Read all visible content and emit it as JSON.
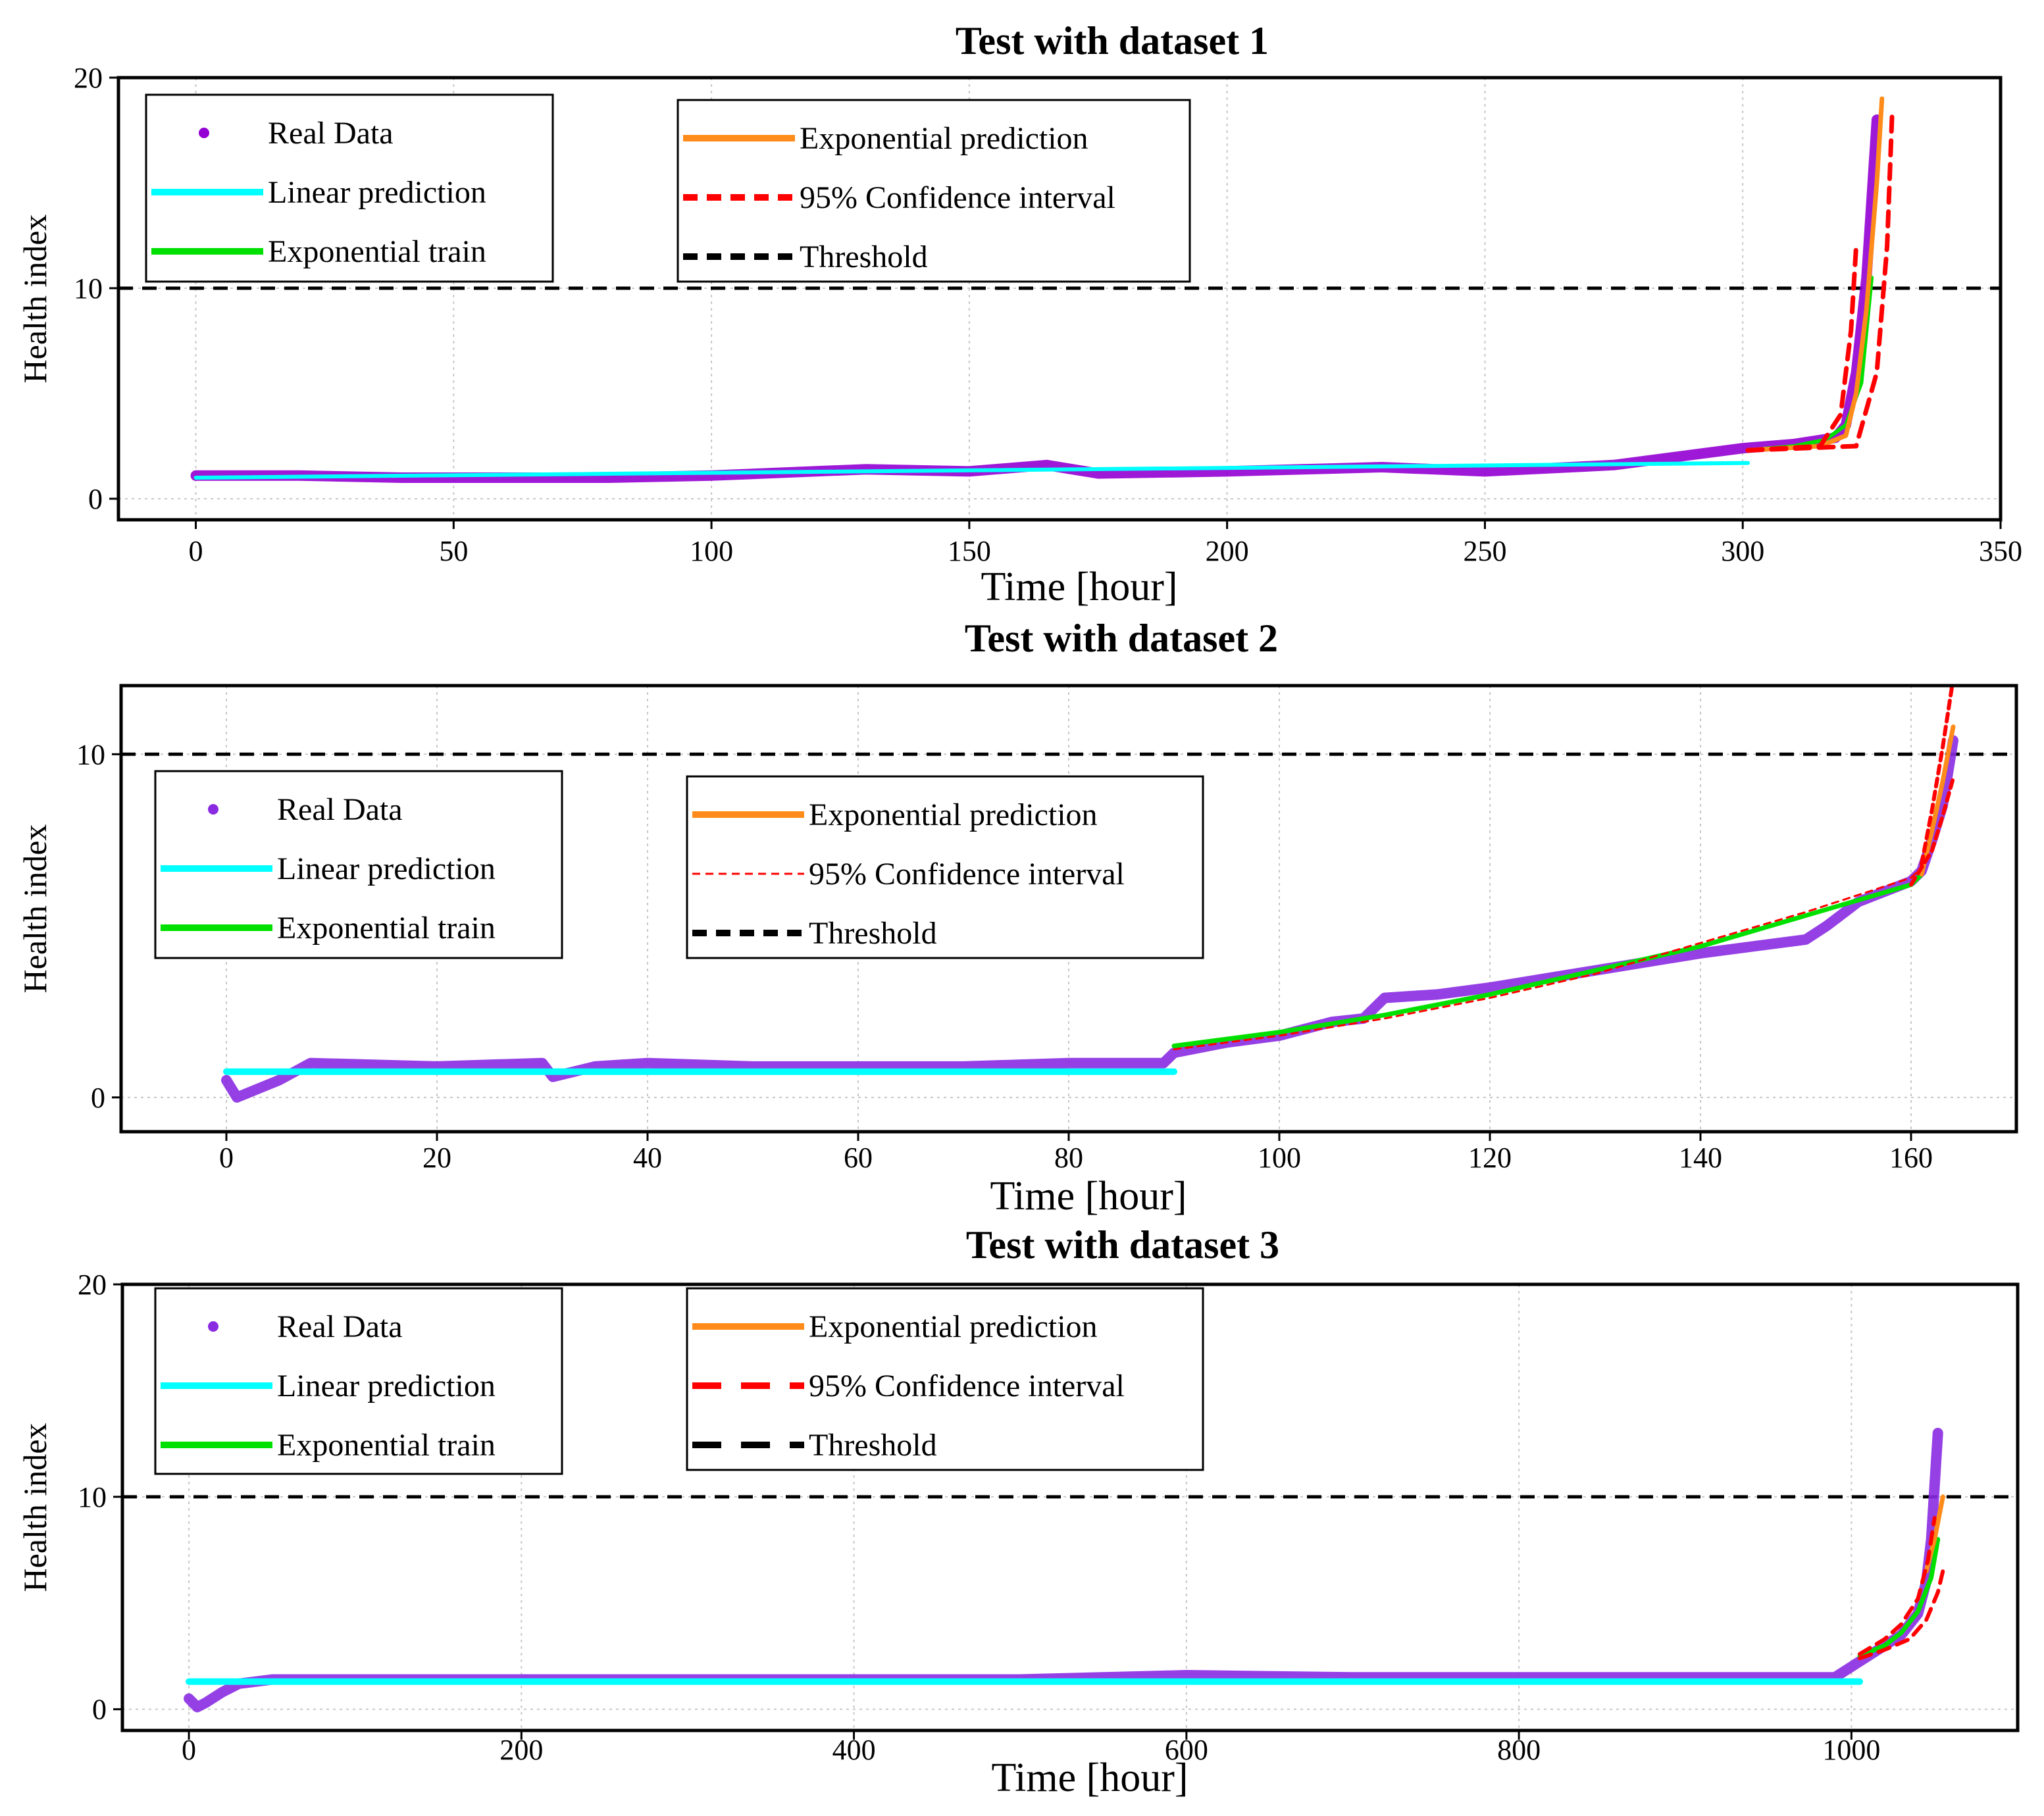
{
  "figure": {
    "background": "#ffffff"
  },
  "chart_data": [
    {
      "type": "line",
      "title": "Test with dataset 1",
      "xlabel": "Time [hour]",
      "ylabel": "Health index",
      "xlim": [
        -15,
        350
      ],
      "ylim": [
        -1,
        20
      ],
      "xticks": [
        0,
        50,
        100,
        150,
        200,
        250,
        300,
        350
      ],
      "yticks": [
        0,
        10,
        20
      ],
      "grid": true,
      "legend": [
        {
          "label": "Real Data",
          "style": "dot",
          "color": "#9400d3"
        },
        {
          "label": "Linear prediction",
          "style": "solid",
          "color": "#00ffff"
        },
        {
          "label": "Exponential train",
          "style": "solid",
          "color": "#00e000"
        }
      ],
      "legend2": [
        {
          "label": "Exponential prediction",
          "style": "solid",
          "color": "#ff8c1a"
        },
        {
          "label": "95% Confidence interval",
          "style": "dashed",
          "color": "#ff0000"
        },
        {
          "label": "Threshold",
          "style": "dashed",
          "color": "#000000"
        }
      ],
      "threshold": 10,
      "real_data": {
        "color": "#9400d3",
        "x": [
          0,
          20,
          40,
          60,
          80,
          100,
          120,
          130,
          150,
          165,
          175,
          200,
          230,
          250,
          275,
          300,
          310,
          318,
          320,
          322,
          324,
          326
        ],
        "y": [
          1.1,
          1.1,
          1.0,
          1.0,
          1.0,
          1.1,
          1.3,
          1.4,
          1.3,
          1.6,
          1.2,
          1.3,
          1.5,
          1.3,
          1.6,
          2.4,
          2.6,
          2.9,
          3.5,
          6.0,
          10.5,
          18.0
        ]
      },
      "series": [
        {
          "name": "Linear prediction",
          "color": "#00ffff",
          "dash": "",
          "width": 6,
          "x": [
            0,
            301
          ],
          "y": [
            1.0,
            1.7
          ]
        },
        {
          "name": "Exponential train",
          "color": "#00e000",
          "dash": "",
          "width": 6,
          "x": [
            301,
            310,
            316,
            320,
            323,
            325
          ],
          "y": [
            2.3,
            2.5,
            2.8,
            3.5,
            5.5,
            10.5
          ]
        },
        {
          "name": "Exponential prediction",
          "color": "#ff8c1a",
          "dash": "",
          "width": 7,
          "x": [
            301,
            315,
            320,
            322,
            324,
            326,
            327
          ],
          "y": [
            2.3,
            2.5,
            3.0,
            5.0,
            9.0,
            15.0,
            19.0
          ]
        },
        {
          "name": "95% Confidence interval",
          "color": "#ff0000",
          "dash": "22,14",
          "width": 7,
          "x": [
            301,
            315,
            319,
            321,
            322
          ],
          "y": [
            2.3,
            2.5,
            4.0,
            8.0,
            12.0
          ]
        },
        {
          "name": "95% Confidence interval (upper time)",
          "color": "#ff0000",
          "dash": "22,14",
          "width": 7,
          "x": [
            301,
            322,
            326,
            328,
            329
          ],
          "y": [
            2.3,
            2.5,
            6.0,
            12.0,
            18.5
          ]
        }
      ]
    },
    {
      "type": "line",
      "title": "Test with dataset 2",
      "xlabel": "Time [hour]",
      "ylabel": "Health index",
      "xlim": [
        -10,
        170
      ],
      "ylim": [
        -1,
        12
      ],
      "xticks": [
        0,
        20,
        40,
        60,
        80,
        100,
        120,
        140,
        160
      ],
      "yticks": [
        0,
        10
      ],
      "grid": true,
      "legend": [
        {
          "label": "Real Data",
          "style": "dot",
          "color": "#8a2be2"
        },
        {
          "label": "Linear prediction",
          "style": "solid",
          "color": "#00ffff"
        },
        {
          "label": "Exponential train",
          "style": "solid",
          "color": "#00e000"
        }
      ],
      "legend2": [
        {
          "label": "Exponential prediction",
          "style": "solid",
          "color": "#ff8c1a"
        },
        {
          "label": "95% Confidence interval",
          "style": "dashed-thin",
          "color": "#ff0000"
        },
        {
          "label": "Threshold",
          "style": "dashed",
          "color": "#000000"
        }
      ],
      "threshold": 10,
      "real_data": {
        "color": "#8a2be2",
        "x": [
          0,
          1,
          5,
          8,
          20,
          30,
          31,
          35,
          40,
          50,
          60,
          70,
          80,
          89,
          90,
          95,
          100,
          105,
          108,
          110,
          115,
          120,
          130,
          140,
          150,
          152,
          155,
          160,
          161,
          162,
          163,
          164
        ],
        "y": [
          0.5,
          0.0,
          0.5,
          1.0,
          0.9,
          1.0,
          0.6,
          0.9,
          1.0,
          0.9,
          0.9,
          0.9,
          1.0,
          1.0,
          1.3,
          1.6,
          1.8,
          2.2,
          2.3,
          2.9,
          3.0,
          3.2,
          3.7,
          4.2,
          4.6,
          5.0,
          5.7,
          6.3,
          6.6,
          7.5,
          8.5,
          10.4
        ]
      },
      "series": [
        {
          "name": "Linear prediction",
          "color": "#00ffff",
          "dash": "",
          "width": 10,
          "x": [
            0,
            90
          ],
          "y": [
            0.75,
            0.75
          ]
        },
        {
          "name": "Exponential train",
          "color": "#00e000",
          "dash": "",
          "width": 7,
          "x": [
            90,
            100,
            110,
            120,
            130,
            140,
            150,
            160,
            161
          ],
          "y": [
            1.5,
            1.9,
            2.4,
            3.0,
            3.7,
            4.4,
            5.3,
            6.2,
            6.5
          ]
        },
        {
          "name": "Exponential prediction",
          "color": "#ff8c1a",
          "dash": "",
          "width": 7,
          "x": [
            161,
            162,
            163,
            164
          ],
          "y": [
            6.5,
            7.8,
            9.2,
            10.8
          ]
        },
        {
          "name": "95% Confidence interval",
          "color": "#ff0000",
          "dash": "10,8",
          "width": 3,
          "x": [
            90,
            100,
            110,
            120,
            130,
            140,
            150,
            160,
            161
          ],
          "y": [
            1.4,
            1.8,
            2.3,
            2.9,
            3.6,
            4.5,
            5.4,
            6.4,
            6.7
          ]
        },
        {
          "name": "95% Confidence interval (upper)",
          "color": "#ff0000",
          "dash": "12,8",
          "width": 6,
          "x": [
            161,
            162,
            163,
            164
          ],
          "y": [
            6.8,
            8.4,
            10.2,
            12.2
          ]
        },
        {
          "name": "95% Confidence interval (lower)",
          "color": "#ff0000",
          "dash": "12,8",
          "width": 6,
          "x": [
            160,
            162,
            163,
            164
          ],
          "y": [
            6.2,
            7.2,
            8.2,
            9.3
          ]
        }
      ]
    },
    {
      "type": "line",
      "title": "Test with dataset 3",
      "xlabel": "Time [hour]",
      "ylabel": "Health index",
      "xlim": [
        -40,
        1100
      ],
      "ylim": [
        -1,
        20
      ],
      "xticks": [
        0,
        200,
        400,
        600,
        800,
        1000
      ],
      "yticks": [
        0,
        10,
        20
      ],
      "grid": true,
      "legend": [
        {
          "label": "Real Data",
          "style": "dot",
          "color": "#8a2be2"
        },
        {
          "label": "Linear prediction",
          "style": "solid",
          "color": "#00ffff"
        },
        {
          "label": "Exponential train",
          "style": "solid",
          "color": "#00e000"
        }
      ],
      "legend2": [
        {
          "label": "Exponential prediction",
          "style": "solid",
          "color": "#ff8c1a"
        },
        {
          "label": "95% Confidence interval",
          "style": "dashed-long",
          "color": "#ff0000"
        },
        {
          "label": "Threshold",
          "style": "dashed-long",
          "color": "#000000"
        }
      ],
      "threshold": 10,
      "real_data": {
        "color": "#8a2be2",
        "x": [
          0,
          5,
          10,
          20,
          30,
          50,
          100,
          200,
          300,
          400,
          500,
          600,
          700,
          800,
          900,
          990,
          1000,
          1010,
          1020,
          1030,
          1040,
          1045,
          1048,
          1050,
          1052
        ],
        "y": [
          0.5,
          0.1,
          0.3,
          0.8,
          1.2,
          1.4,
          1.4,
          1.4,
          1.4,
          1.4,
          1.4,
          1.6,
          1.5,
          1.5,
          1.5,
          1.5,
          2.0,
          2.5,
          3.0,
          3.5,
          4.5,
          6.0,
          8.0,
          10.5,
          13.0
        ]
      },
      "series": [
        {
          "name": "Linear prediction",
          "color": "#00ffff",
          "dash": "",
          "width": 10,
          "x": [
            0,
            1005
          ],
          "y": [
            1.3,
            1.3
          ]
        },
        {
          "name": "Exponential train",
          "color": "#00e000",
          "dash": "",
          "width": 7,
          "x": [
            1005,
            1020,
            1030,
            1040,
            1048,
            1052
          ],
          "y": [
            2.5,
            3.0,
            3.6,
            4.6,
            6.2,
            8.0
          ]
        },
        {
          "name": "Exponential prediction",
          "color": "#ff8c1a",
          "dash": "",
          "width": 7,
          "x": [
            1045,
            1050,
            1055
          ],
          "y": [
            6.5,
            8.0,
            10.0
          ]
        },
        {
          "name": "95% Confidence interval",
          "color": "#ff0000",
          "dash": "18,12",
          "width": 6,
          "x": [
            1005,
            1020,
            1030,
            1040,
            1046,
            1050
          ],
          "y": [
            2.6,
            3.3,
            4.0,
            5.2,
            7.0,
            9.0
          ]
        },
        {
          "name": "95% Confidence interval (upper time)",
          "color": "#ff0000",
          "dash": "18,12",
          "width": 6,
          "x": [
            1005,
            1020,
            1035,
            1045,
            1052,
            1055
          ],
          "y": [
            2.4,
            2.8,
            3.3,
            4.2,
            5.5,
            6.5
          ]
        }
      ]
    }
  ]
}
